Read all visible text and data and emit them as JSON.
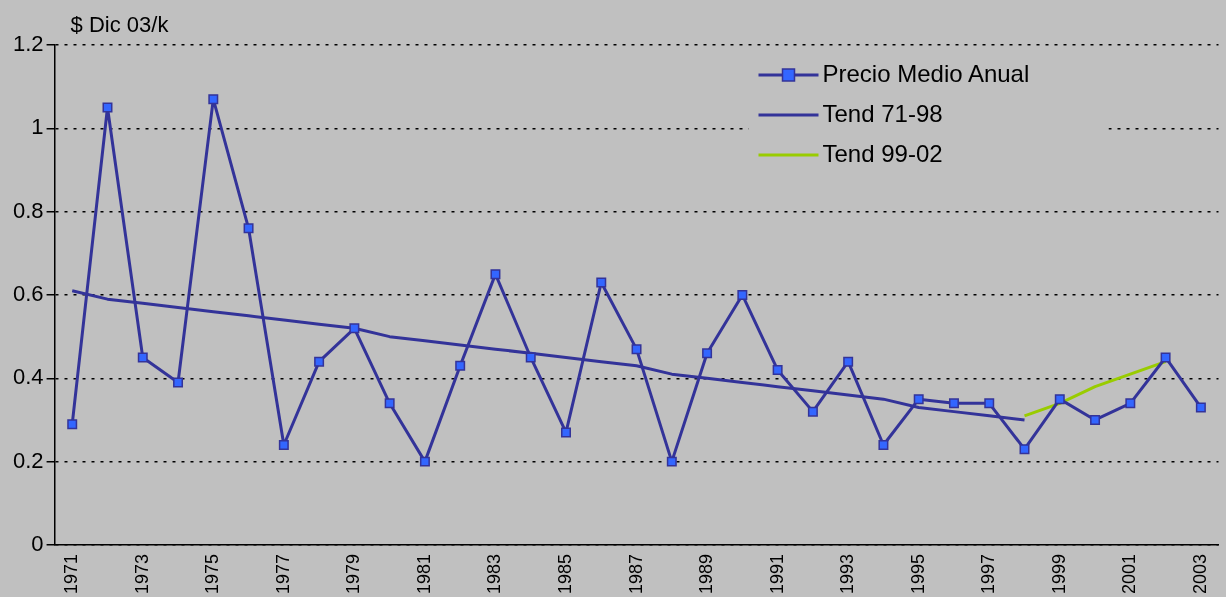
{
  "chart_data": {
    "type": "line",
    "ylabel": "$ Dic 03/k",
    "categories": [
      "1971",
      null,
      "1973",
      null,
      "1975",
      null,
      "1977",
      null,
      "1979",
      null,
      "1981",
      null,
      "1983",
      null,
      "1985",
      null,
      "1987",
      null,
      "1989",
      null,
      "1991",
      null,
      "1993",
      null,
      "1995",
      null,
      "1997",
      null,
      "1999",
      null,
      "2001",
      null,
      "2003"
    ],
    "series": [
      {
        "name": "Precio Medio Anual",
        "color": "#333399",
        "marker": "square",
        "values": [
          0.29,
          1.05,
          0.45,
          0.39,
          1.07,
          0.76,
          0.24,
          0.44,
          0.52,
          0.34,
          0.2,
          0.43,
          0.65,
          0.45,
          0.27,
          0.63,
          0.47,
          0.2,
          0.46,
          0.6,
          0.42,
          0.32,
          0.44,
          0.24,
          0.35,
          0.34,
          0.34,
          0.23,
          0.35,
          0.3,
          0.34,
          0.45,
          0.33
        ]
      },
      {
        "name": "Tend 71-98",
        "color": "#333399",
        "marker": "none",
        "values": [
          0.61,
          0.59,
          0.58,
          0.57,
          0.56,
          0.55,
          0.54,
          0.53,
          0.52,
          0.5,
          0.49,
          0.48,
          0.47,
          0.46,
          0.45,
          0.44,
          0.43,
          0.41,
          0.4,
          0.39,
          0.38,
          0.37,
          0.36,
          0.35,
          0.33,
          0.32,
          0.31,
          0.3,
          null,
          null,
          null,
          null,
          null
        ]
      },
      {
        "name": "Tend 99-02",
        "color": "#99cc00",
        "marker": "none",
        "values": [
          null,
          null,
          null,
          null,
          null,
          null,
          null,
          null,
          null,
          null,
          null,
          null,
          null,
          null,
          null,
          null,
          null,
          null,
          null,
          null,
          null,
          null,
          null,
          null,
          null,
          null,
          null,
          0.31,
          0.34,
          0.38,
          0.41,
          0.44,
          null
        ]
      }
    ],
    "ylim": [
      0,
      1.2
    ],
    "yticks": [
      0,
      0.2,
      0.4,
      0.6,
      0.8,
      1,
      1.2
    ],
    "grid": "y",
    "legend": "top right",
    "line_style": "solid"
  }
}
